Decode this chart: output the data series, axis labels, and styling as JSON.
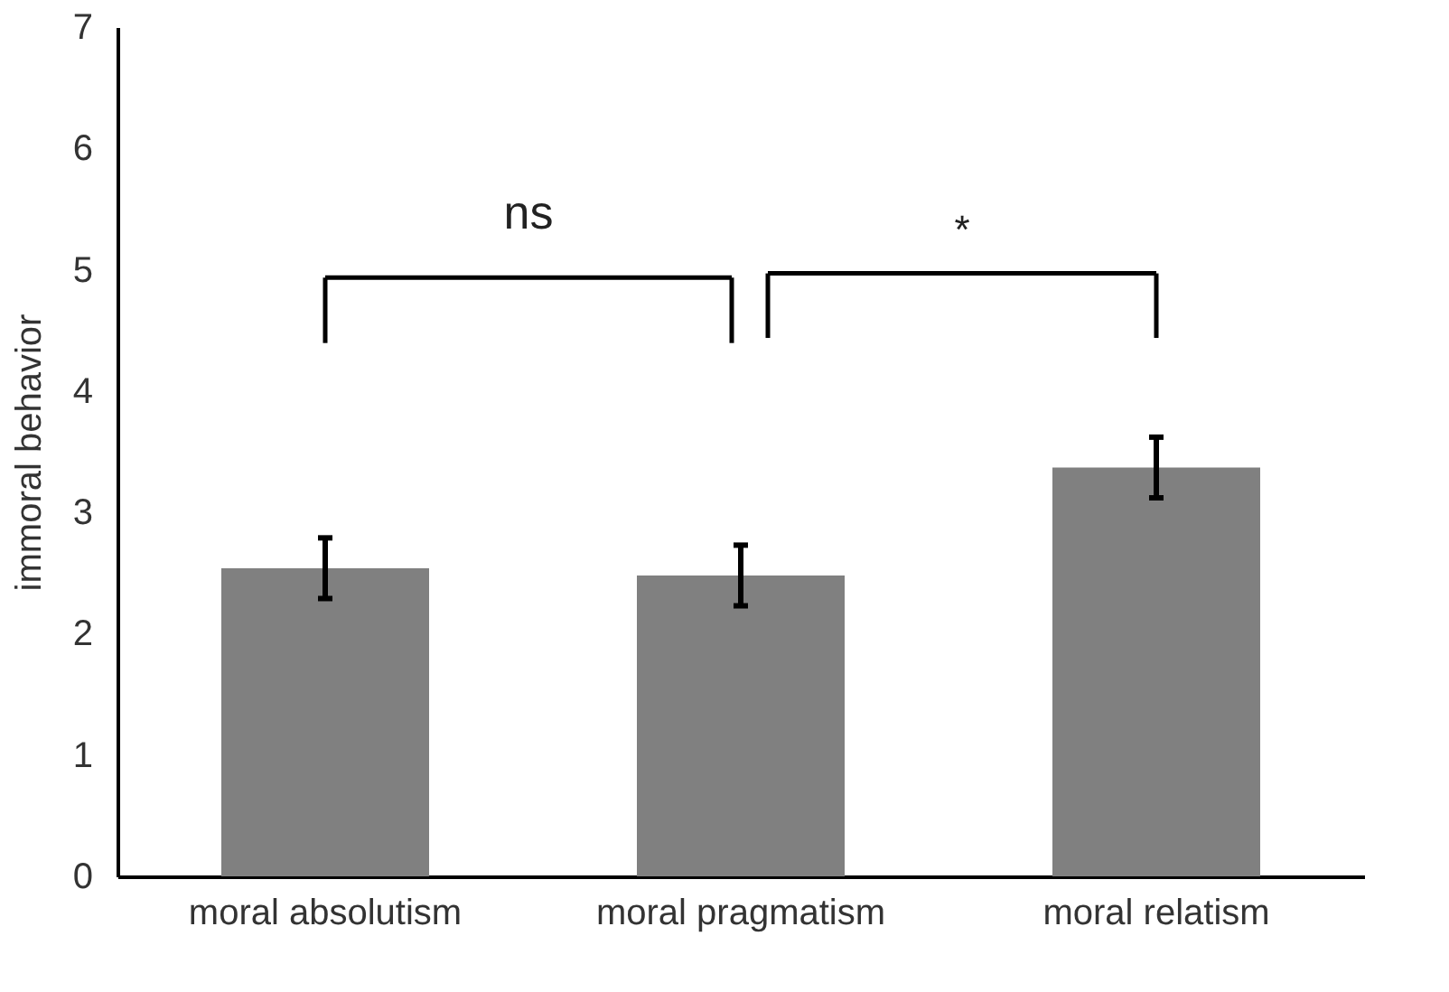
{
  "chart_data": {
    "type": "bar",
    "ylabel": "immoral behavior",
    "categories": [
      "moral absolutism",
      "moral pragmatism",
      "moral relatism"
    ],
    "values": [
      2.54,
      2.48,
      3.37
    ],
    "errors": [
      0.25,
      0.25,
      0.25
    ],
    "color": "#808080",
    "ylim": [
      0,
      7
    ],
    "yticks": [
      0,
      1,
      2,
      3,
      4,
      5,
      6,
      7
    ],
    "grid": false,
    "annotations": [
      "ns",
      "*"
    ]
  }
}
